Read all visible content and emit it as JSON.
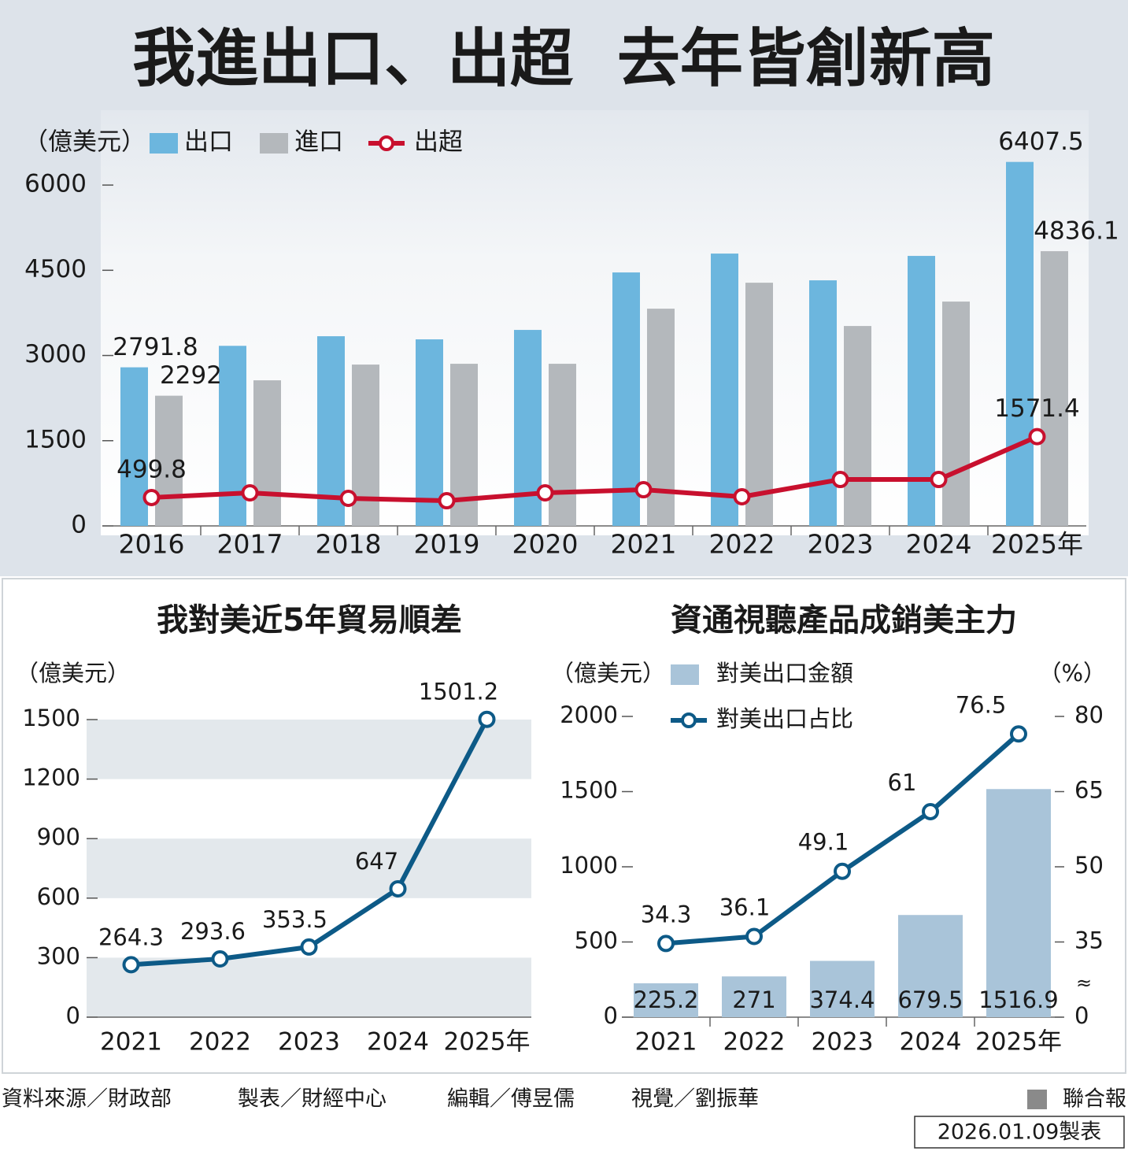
{
  "title": "我進出口、出超  去年皆創新高",
  "chart_data": [
    {
      "type": "bar_line",
      "y_label": "（億美元）",
      "categories": [
        "2016",
        "2017",
        "2018",
        "2019",
        "2020",
        "2021",
        "2022",
        "2023",
        "2024",
        "2025年"
      ],
      "series": [
        {
          "name": "出口",
          "type": "bar",
          "color": "#6cb6de",
          "values": [
            2791.8,
            3170,
            3339,
            3284,
            3450,
            4462,
            4794,
            4323,
            4753,
            6407.5
          ]
        },
        {
          "name": "進口",
          "type": "bar",
          "color": "#b4b8bc",
          "values": [
            2292,
            2563,
            2840,
            2854,
            2854,
            3824,
            4281,
            3519,
            3949,
            4836.1
          ]
        },
        {
          "name": "出超",
          "type": "line",
          "color": "#c8102e",
          "values": [
            499.8,
            582,
            485,
            443,
            582,
            637,
            513,
            817,
            817,
            1571.4
          ]
        }
      ],
      "labeled_points": [
        0,
        9
      ],
      "ylim": [
        0,
        6500
      ],
      "yticks": [
        0,
        1500,
        3000,
        4500,
        6000
      ]
    },
    {
      "type": "line",
      "title": "我對美近5年貿易順差",
      "y_label": "（億美元）",
      "categories": [
        "2021",
        "2022",
        "2023",
        "2024",
        "2025年"
      ],
      "values": [
        264.3,
        293.6,
        353.5,
        647,
        1501.2
      ],
      "color": "#0d5a87",
      "ylim": [
        0,
        1500
      ],
      "yticks": [
        0,
        300,
        600,
        900,
        1200,
        1500
      ],
      "bands": true
    },
    {
      "type": "bar_line",
      "title": "資通視聽產品成銷美主力",
      "y_label": "（億美元）",
      "y2_label": "（%）",
      "categories": [
        "2021",
        "2022",
        "2023",
        "2024",
        "2025年"
      ],
      "series": [
        {
          "name": "對美出口金額",
          "type": "bar",
          "color": "#a9c4d9",
          "values": [
            225.2,
            271,
            374.4,
            679.5,
            1516.9
          ]
        },
        {
          "name": "對美出口占比",
          "type": "line",
          "axis": "y2",
          "color": "#0d5a87",
          "values": [
            34.3,
            36.1,
            49.1,
            61,
            76.5
          ]
        }
      ],
      "ylim": [
        0,
        2000
      ],
      "yticks": [
        0,
        500,
        1000,
        1500,
        2000
      ],
      "y2lim": [
        0,
        80
      ],
      "y2ticks": [
        0,
        35,
        50,
        65,
        80
      ],
      "y2break": true
    }
  ],
  "footer": {
    "credits": [
      "資料來源／財政部",
      "製表／財經中心",
      "編輯／傅昱儒",
      "視覺／劉振華"
    ],
    "publisher": "聯合報",
    "date": "2026.01.09製表"
  }
}
